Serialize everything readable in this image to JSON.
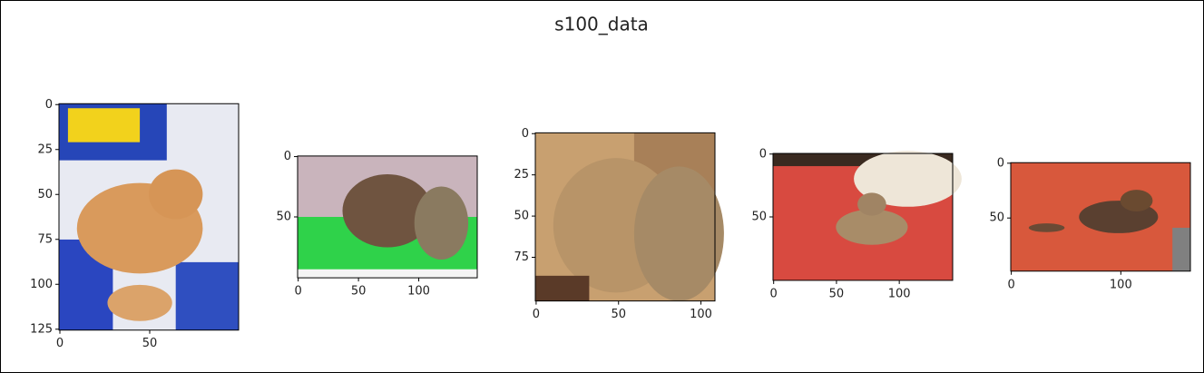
{
  "chart_data": [
    {
      "type": "image",
      "title": "s100_data",
      "xlim": [
        -0.5,
        99.5
      ],
      "ylim": [
        125.5,
        -0.5
      ],
      "xticks": [
        0,
        50
      ],
      "yticks": [
        0,
        25,
        50,
        75,
        100,
        125
      ]
    },
    {
      "type": "image",
      "xlim": [
        -0.5,
        148.5
      ],
      "ylim": [
        100.5,
        -0.5
      ],
      "xticks": [
        0,
        50,
        100
      ],
      "yticks": [
        0,
        50
      ]
    },
    {
      "type": "image",
      "xlim": [
        -0.5,
        108.5
      ],
      "ylim": [
        101.5,
        -0.5
      ],
      "xticks": [
        0,
        50,
        100
      ],
      "yticks": [
        0,
        25,
        50,
        75
      ]
    },
    {
      "type": "image",
      "xlim": [
        -0.5,
        142.5
      ],
      "ylim": [
        100.5,
        -0.5
      ],
      "xticks": [
        0,
        50,
        100
      ],
      "yticks": [
        0,
        50
      ]
    },
    {
      "type": "image",
      "xlim": [
        -0.5,
        163.5
      ],
      "ylim": [
        98.5,
        -0.5
      ],
      "xticks": [
        0,
        100
      ],
      "yticks": [
        0,
        50
      ]
    }
  ]
}
